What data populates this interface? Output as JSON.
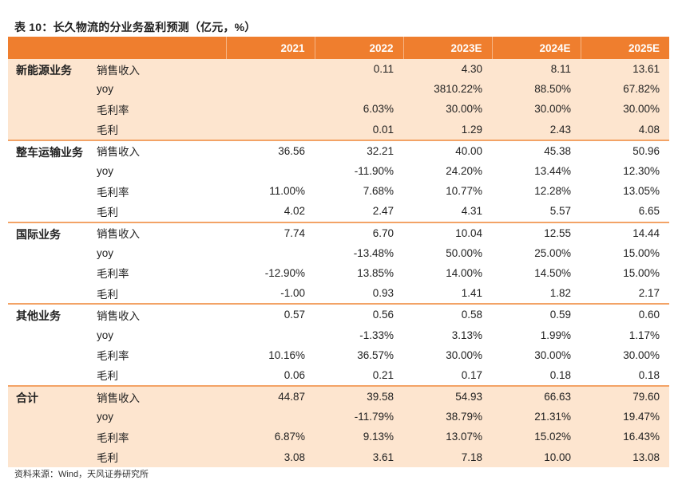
{
  "title": "表 10：长久物流的分业务盈利预测（亿元，%）",
  "columns": [
    "",
    "",
    "2021",
    "2022",
    "2023E",
    "2024E",
    "2025E"
  ],
  "segments": [
    {
      "name": "新能源业务",
      "shaded": true,
      "rows": [
        {
          "metric": "销售收入",
          "values": [
            "",
            "0.11",
            "4.30",
            "8.11",
            "13.61"
          ]
        },
        {
          "metric": "yoy",
          "values": [
            "",
            "",
            "3810.22%",
            "88.50%",
            "67.82%"
          ]
        },
        {
          "metric": "毛利率",
          "values": [
            "",
            "6.03%",
            "30.00%",
            "30.00%",
            "30.00%"
          ]
        },
        {
          "metric": "毛利",
          "values": [
            "",
            "0.01",
            "1.29",
            "2.43",
            "4.08"
          ]
        }
      ]
    },
    {
      "name": "整车运输业务",
      "shaded": false,
      "rows": [
        {
          "metric": "销售收入",
          "values": [
            "36.56",
            "32.21",
            "40.00",
            "45.38",
            "50.96"
          ]
        },
        {
          "metric": "yoy",
          "values": [
            "",
            "-11.90%",
            "24.20%",
            "13.44%",
            "12.30%"
          ]
        },
        {
          "metric": "毛利率",
          "values": [
            "11.00%",
            "7.68%",
            "10.77%",
            "12.28%",
            "13.05%"
          ]
        },
        {
          "metric": "毛利",
          "values": [
            "4.02",
            "2.47",
            "4.31",
            "5.57",
            "6.65"
          ]
        }
      ]
    },
    {
      "name": "国际业务",
      "shaded": false,
      "rows": [
        {
          "metric": "销售收入",
          "values": [
            "7.74",
            "6.70",
            "10.04",
            "12.55",
            "14.44"
          ]
        },
        {
          "metric": "yoy",
          "values": [
            "",
            "-13.48%",
            "50.00%",
            "25.00%",
            "15.00%"
          ]
        },
        {
          "metric": "毛利率",
          "values": [
            "-12.90%",
            "13.85%",
            "14.00%",
            "14.50%",
            "15.00%"
          ]
        },
        {
          "metric": "毛利",
          "values": [
            "-1.00",
            "0.93",
            "1.41",
            "1.82",
            "2.17"
          ]
        }
      ]
    },
    {
      "name": "其他业务",
      "shaded": false,
      "rows": [
        {
          "metric": "销售收入",
          "values": [
            "0.57",
            "0.56",
            "0.58",
            "0.59",
            "0.60"
          ]
        },
        {
          "metric": "yoy",
          "values": [
            "",
            "-1.33%",
            "3.13%",
            "1.99%",
            "1.17%"
          ]
        },
        {
          "metric": "毛利率",
          "values": [
            "10.16%",
            "36.57%",
            "30.00%",
            "30.00%",
            "30.00%"
          ]
        },
        {
          "metric": "毛利",
          "values": [
            "0.06",
            "0.21",
            "0.17",
            "0.18",
            "0.18"
          ]
        }
      ]
    },
    {
      "name": "合计",
      "shaded": true,
      "rows": [
        {
          "metric": "销售收入",
          "values": [
            "44.87",
            "39.58",
            "54.93",
            "66.63",
            "79.60"
          ]
        },
        {
          "metric": "yoy",
          "values": [
            "",
            "-11.79%",
            "38.79%",
            "21.31%",
            "19.47%"
          ]
        },
        {
          "metric": "毛利率",
          "values": [
            "6.87%",
            "9.13%",
            "13.07%",
            "15.02%",
            "16.43%"
          ]
        },
        {
          "metric": "毛利",
          "values": [
            "3.08",
            "3.61",
            "7.18",
            "10.00",
            "13.08"
          ]
        }
      ]
    }
  ],
  "source": "资料来源：Wind，天风证券研究所",
  "colors": {
    "header_bg": "#ef7e2e",
    "shade_bg": "#fde5cf",
    "divider": "#f3a366"
  }
}
